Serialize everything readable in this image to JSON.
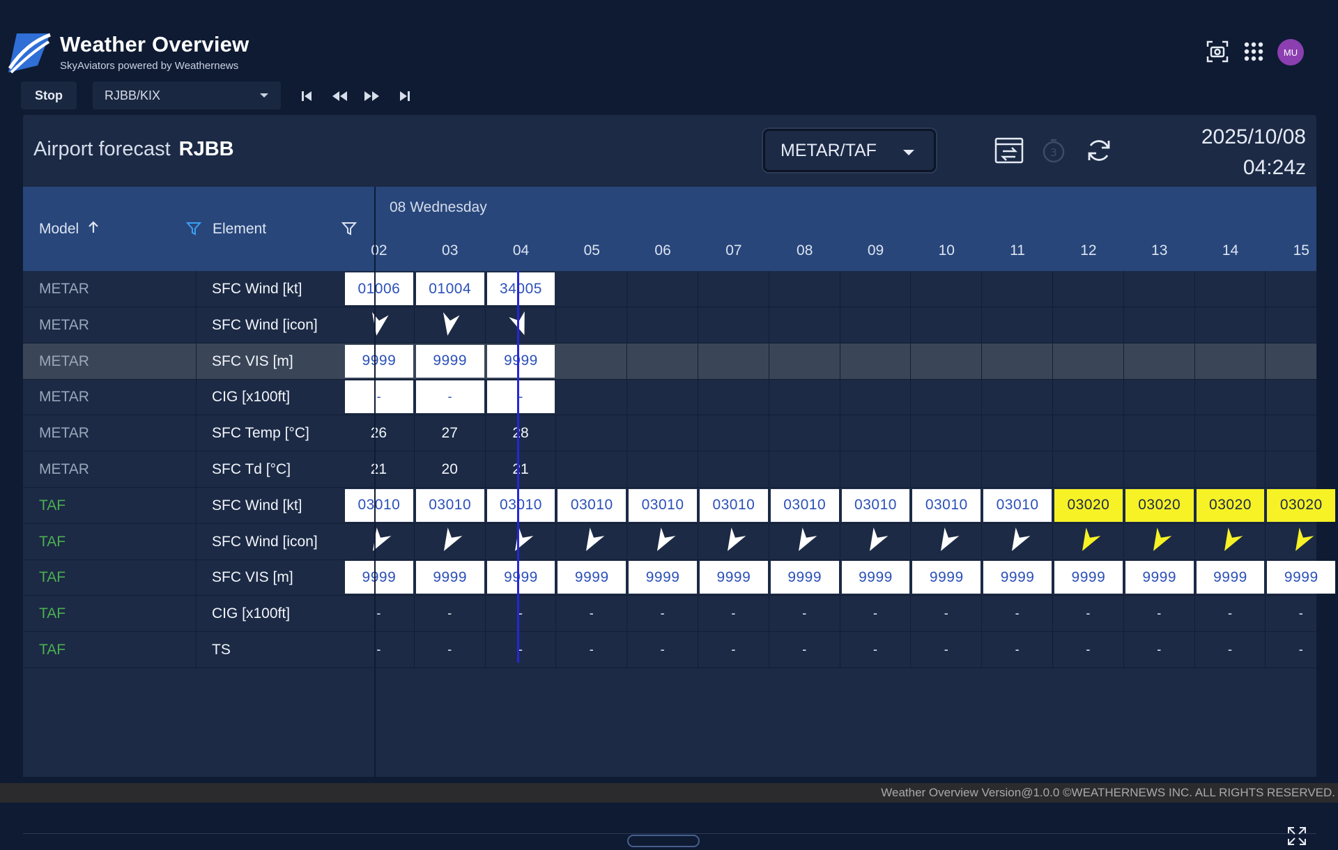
{
  "app": {
    "title": "Weather Overview",
    "subtitle": "SkyAviators powered by Weathernews",
    "avatar_initials": "MU"
  },
  "toolbar": {
    "stop_label": "Stop",
    "airport_value": "RJBB/KIX"
  },
  "panel": {
    "title": "Airport forecast",
    "airport_code": "RJBB",
    "data_source": "METAR/TAF",
    "date": "2025/10/08",
    "time": "04:24z"
  },
  "grid": {
    "col_model": "Model",
    "col_element": "Element",
    "date_label": "08 Wednesday",
    "hours": [
      "02",
      "03",
      "04",
      "05",
      "06",
      "07",
      "08",
      "09",
      "10",
      "11",
      "12",
      "13",
      "14",
      "15"
    ],
    "rows": [
      {
        "model": "METAR",
        "element": "SFC Wind [kt]",
        "type": "box",
        "cells": [
          "01006",
          "01004",
          "34005"
        ]
      },
      {
        "model": "METAR",
        "element": "SFC Wind [icon]",
        "type": "icon",
        "cells": [
          10,
          10,
          340
        ]
      },
      {
        "model": "METAR",
        "element": "SFC VIS [m]",
        "type": "box",
        "highlight": true,
        "cells": [
          "9999",
          "9999",
          "9999"
        ]
      },
      {
        "model": "METAR",
        "element": "CIG [x100ft]",
        "type": "box",
        "cells": [
          "-",
          "-",
          "-"
        ]
      },
      {
        "model": "METAR",
        "element": "SFC Temp [°C]",
        "type": "text",
        "cells": [
          "26",
          "27",
          "28"
        ]
      },
      {
        "model": "METAR",
        "element": "SFC Td [°C]",
        "type": "text",
        "cells": [
          "21",
          "20",
          "21"
        ]
      },
      {
        "model": "TAF",
        "element": "SFC Wind [kt]",
        "type": "box",
        "cells": [
          "03010",
          "03010",
          "03010",
          "03010",
          "03010",
          "03010",
          "03010",
          "03010",
          "03010",
          "03010",
          "03020",
          "03020",
          "03020",
          "03020"
        ],
        "yellow_from": 10
      },
      {
        "model": "TAF",
        "element": "SFC Wind [icon]",
        "type": "icon",
        "cells": [
          30,
          30,
          30,
          30,
          30,
          30,
          30,
          30,
          30,
          30,
          30,
          30,
          30,
          30
        ],
        "yellow_from": 10
      },
      {
        "model": "TAF",
        "element": "SFC VIS [m]",
        "type": "box",
        "cells": [
          "9999",
          "9999",
          "9999",
          "9999",
          "9999",
          "9999",
          "9999",
          "9999",
          "9999",
          "9999",
          "9999",
          "9999",
          "9999",
          "9999"
        ]
      },
      {
        "model": "TAF",
        "element": "CIG [x100ft]",
        "type": "text",
        "cells": [
          "-",
          "-",
          "-",
          "-",
          "-",
          "-",
          "-",
          "-",
          "-",
          "-",
          "-",
          "-",
          "-",
          "-"
        ]
      },
      {
        "model": "TAF",
        "element": "TS",
        "type": "text",
        "cells": [
          "-",
          "-",
          "-",
          "-",
          "-",
          "-",
          "-",
          "-",
          "-",
          "-",
          "-",
          "-",
          "-",
          "-"
        ]
      }
    ]
  },
  "colors": {
    "metar_model": "#9aa6bb",
    "taf_model": "#4caf50",
    "yellow_alert": "#f6f226"
  },
  "footer": {
    "text": "Weather Overview  Version@1.0.0  ©WEATHERNEWS INC. ALL RIGHTS RESERVED."
  }
}
